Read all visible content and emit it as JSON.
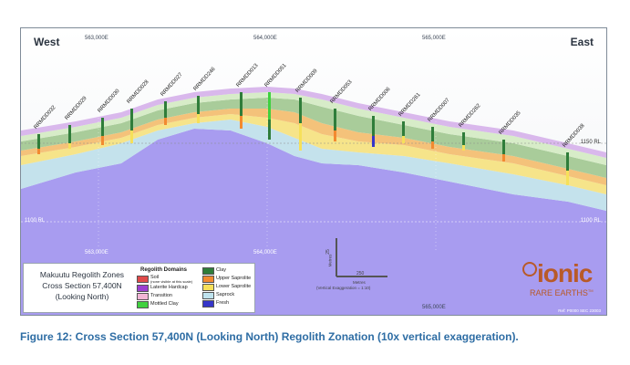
{
  "section": {
    "west_label": "West",
    "east_label": "East",
    "eastings_top": [
      "563,000E",
      "564,000E",
      "565,000E"
    ],
    "eastings_bottom": [
      "563,000E",
      "564,000E",
      "565,000E"
    ],
    "rl_right_1": "1150 RL",
    "rl_left_2": "1100 RL",
    "rl_right_2": "1100 RL",
    "drillholes": [
      "RRMDD032",
      "RRMDD029",
      "RRMDD030",
      "RRMDD028",
      "RRMDD027",
      "RRMDD246",
      "RRMDD013",
      "RRMDD051",
      "RRMDD009",
      "RRMDD053",
      "RRMDD006",
      "RRMDD261",
      "RRMDD007",
      "RRMDD262",
      "RRMDD035",
      "RRMDD038"
    ],
    "ref_code": "Ref: P0000 SEC 23003"
  },
  "legend": {
    "title_lines": [
      "Makuutu Regolith Zones",
      "Cross Section 57,400N",
      "(Looking North)"
    ],
    "domains_heading": "Regolith Domains",
    "items": [
      {
        "label": "Soil",
        "note": "(none visible at this scale)",
        "color": "#e04a4a"
      },
      {
        "label": "Laterite Hardcap",
        "color": "#9b3fd1"
      },
      {
        "label": "Transition",
        "color": "#f2b6d6"
      },
      {
        "label": "Mottled Clay",
        "color": "#3fd13f"
      },
      {
        "label": "Clay",
        "color": "#2f7d3a"
      },
      {
        "label": "Upper Saprolite",
        "color": "#f28a30"
      },
      {
        "label": "Lower Saprolite",
        "color": "#f6e05a"
      },
      {
        "label": "Saprock",
        "color": "#bfe3ee"
      },
      {
        "label": "Fresh",
        "color": "#3535c9"
      }
    ]
  },
  "scale": {
    "vertical_value": "25",
    "vertical_unit": "Metres",
    "horizontal_value": "250",
    "horizontal_unit": "Metres",
    "exaggeration": "(Vertical Exaggeration = 1:10)"
  },
  "logo": {
    "word": "ionic",
    "subtitle": "RARE EARTHS",
    "trademark": "TM"
  },
  "caption": "Figure 12: Cross Section 57,400N (Looking North) Regolith Zonation (10x vertical exaggeration)."
}
